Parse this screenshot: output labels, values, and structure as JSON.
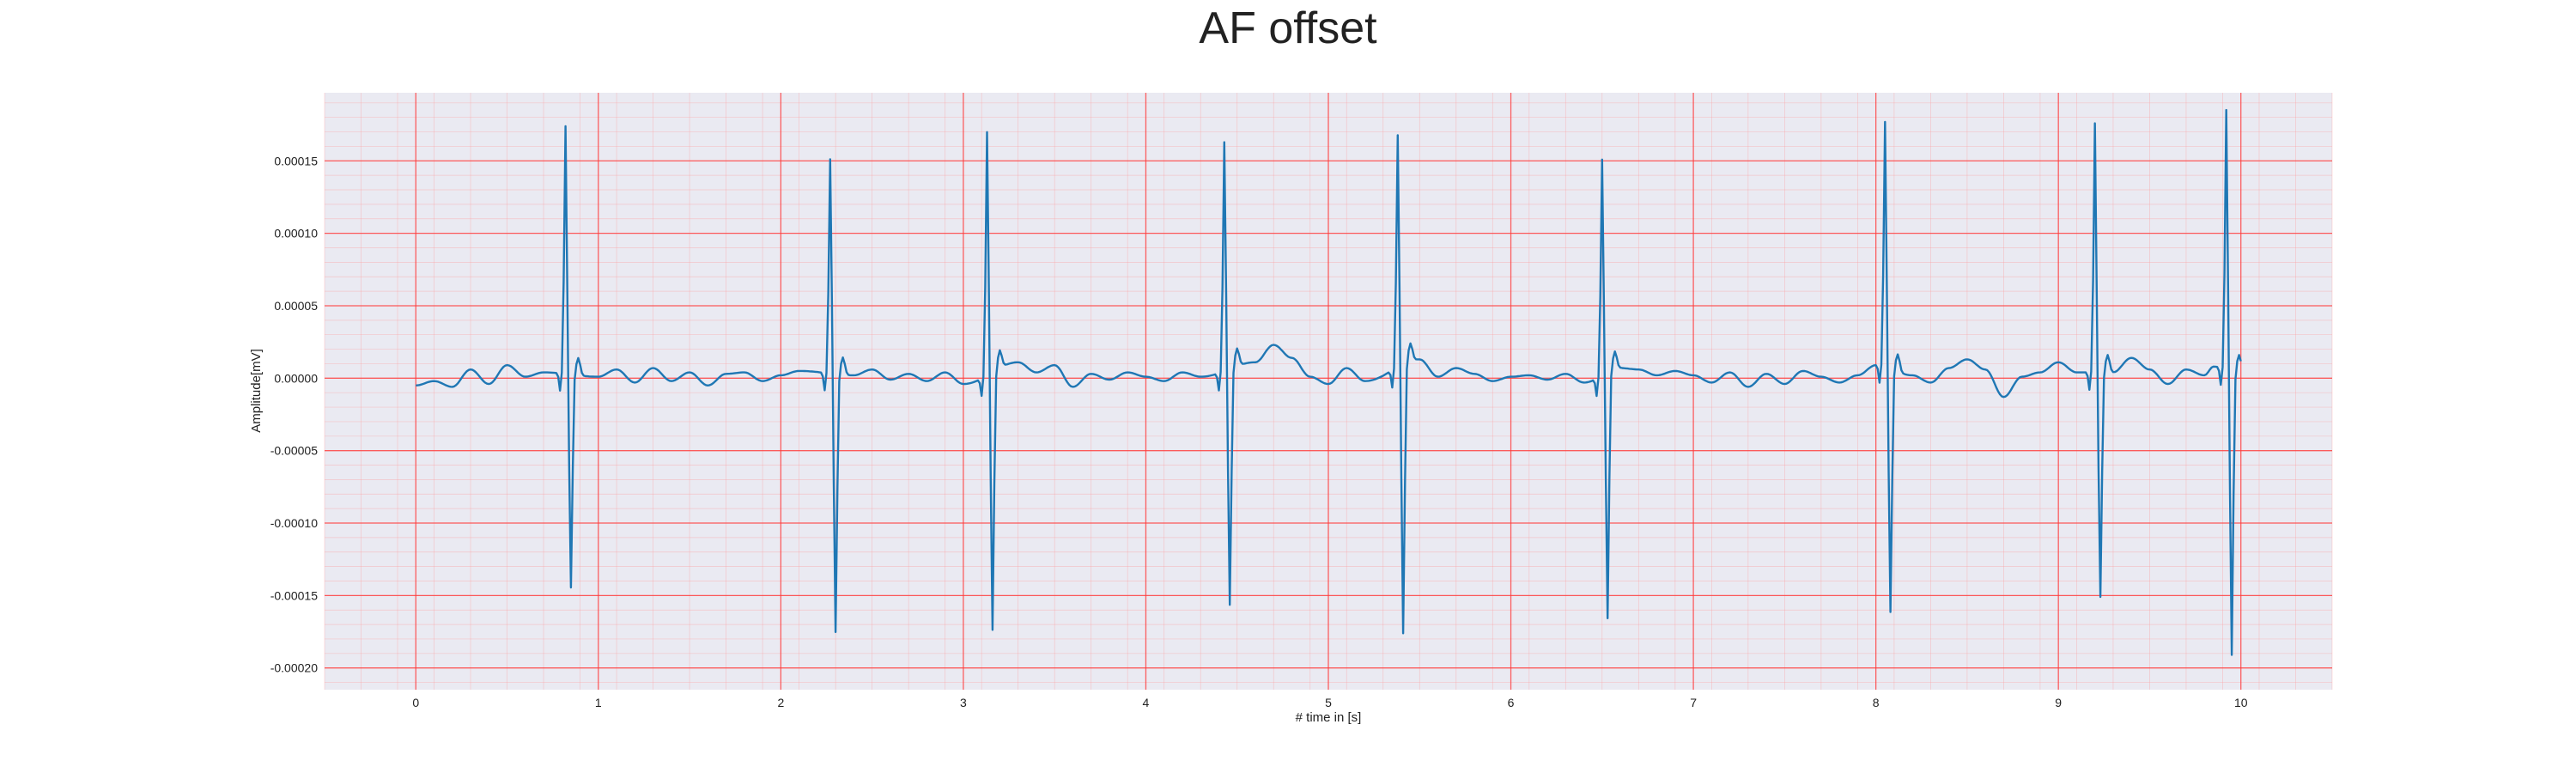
{
  "chart_data": {
    "type": "line",
    "title": "AF offset",
    "xlabel": "# time in [s]",
    "ylabel": "Amplitude[mV]",
    "xlim": [
      -0.5,
      10.5
    ],
    "ylim": [
      -0.000215,
      0.000197
    ],
    "x_ticks": [
      0,
      1,
      2,
      3,
      4,
      5,
      6,
      7,
      8,
      9,
      10
    ],
    "x_tick_labels": [
      "0",
      "1",
      "2",
      "3",
      "4",
      "5",
      "6",
      "7",
      "8",
      "9",
      "10"
    ],
    "y_ticks": [
      0.00015,
      0.0001,
      5e-05,
      0.0,
      -5e-05,
      -0.0001,
      -0.00015,
      -0.0002
    ],
    "y_tick_labels": [
      "0.00015",
      "0.00010",
      "0.00005",
      "0.00000",
      "-0.00005",
      "-0.00010",
      "-0.00015",
      "-0.00020"
    ],
    "grid": "on",
    "legend": "none",
    "sample_rate_hz": 100,
    "series": [
      {
        "color": "#1f77b4",
        "beats": [
          {
            "t": 0.82,
            "peak": 0.000171,
            "trough": -0.000147
          },
          {
            "t": 2.27,
            "peak": 0.000148,
            "trough": -0.000178
          },
          {
            "t": 3.13,
            "peak": 0.000168,
            "trough": -0.000178
          },
          {
            "t": 4.43,
            "peak": 0.000158,
            "trough": -0.000163
          },
          {
            "t": 5.38,
            "peak": 0.00016,
            "trough": -0.000186
          },
          {
            "t": 6.5,
            "peak": 0.000149,
            "trough": -0.00017
          },
          {
            "t": 8.05,
            "peak": 0.000169,
            "trough": -0.000168
          },
          {
            "t": 9.2,
            "peak": 0.000172,
            "trough": -0.000155
          },
          {
            "t": 9.92,
            "peak": 0.000179,
            "trough": -0.000196
          }
        ],
        "baseline": [
          [
            0.0,
            -5e-06
          ],
          [
            0.1,
            -2e-06
          ],
          [
            0.2,
            -6e-06
          ],
          [
            0.3,
            6e-06
          ],
          [
            0.4,
            -4e-06
          ],
          [
            0.5,
            9e-06
          ],
          [
            0.6,
            1e-06
          ],
          [
            0.7,
            4e-06
          ],
          [
            1.0,
            1e-06
          ],
          [
            1.1,
            6e-06
          ],
          [
            1.2,
            -3e-06
          ],
          [
            1.3,
            7e-06
          ],
          [
            1.4,
            -2e-06
          ],
          [
            1.5,
            4e-06
          ],
          [
            1.6,
            -5e-06
          ],
          [
            1.7,
            3e-06
          ],
          [
            1.8,
            4e-06
          ],
          [
            1.9,
            -2e-06
          ],
          [
            2.0,
            2e-06
          ],
          [
            2.1,
            5e-06
          ],
          [
            2.4,
            2e-06
          ],
          [
            2.5,
            6e-06
          ],
          [
            2.6,
            -1e-06
          ],
          [
            2.7,
            3e-06
          ],
          [
            2.8,
            -2e-06
          ],
          [
            2.9,
            4e-06
          ],
          [
            3.0,
            -4e-06
          ],
          [
            3.3,
            1.1e-05
          ],
          [
            3.4,
            4e-06
          ],
          [
            3.5,
            9e-06
          ],
          [
            3.6,
            -6e-06
          ],
          [
            3.7,
            3e-06
          ],
          [
            3.8,
            -1e-06
          ],
          [
            3.9,
            4e-06
          ],
          [
            4.0,
            1e-06
          ],
          [
            4.1,
            -2e-06
          ],
          [
            4.2,
            4e-06
          ],
          [
            4.3,
            1e-06
          ],
          [
            4.6,
            1.1e-05
          ],
          [
            4.7,
            2.3e-05
          ],
          [
            4.8,
            1.4e-05
          ],
          [
            4.9,
            1e-06
          ],
          [
            5.0,
            -4e-06
          ],
          [
            5.1,
            7e-06
          ],
          [
            5.2,
            -2e-06
          ],
          [
            5.5,
            1.3e-05
          ],
          [
            5.6,
            1e-06
          ],
          [
            5.7,
            7e-06
          ],
          [
            5.8,
            3e-06
          ],
          [
            5.9,
            -2e-06
          ],
          [
            6.0,
            1e-06
          ],
          [
            6.1,
            2e-06
          ],
          [
            6.2,
            -1e-06
          ],
          [
            6.3,
            3e-06
          ],
          [
            6.4,
            -3e-06
          ],
          [
            6.6,
            7e-06
          ],
          [
            6.7,
            6e-06
          ],
          [
            6.8,
            2e-06
          ],
          [
            6.9,
            5e-06
          ],
          [
            7.0,
            2e-06
          ],
          [
            7.1,
            -3e-06
          ],
          [
            7.2,
            4e-06
          ],
          [
            7.3,
            -6e-06
          ],
          [
            7.4,
            3e-06
          ],
          [
            7.5,
            -4e-06
          ],
          [
            7.6,
            5e-06
          ],
          [
            7.7,
            1e-06
          ],
          [
            7.8,
            -3e-06
          ],
          [
            7.9,
            2e-06
          ],
          [
            8.0,
            9e-06
          ],
          [
            8.2,
            2e-06
          ],
          [
            8.3,
            -3e-06
          ],
          [
            8.4,
            7e-06
          ],
          [
            8.5,
            1.3e-05
          ],
          [
            8.6,
            6e-06
          ],
          [
            8.7,
            -1.3e-05
          ],
          [
            8.8,
            1e-06
          ],
          [
            8.9,
            4e-06
          ],
          [
            9.0,
            1.1e-05
          ],
          [
            9.1,
            4e-06
          ],
          [
            9.3,
            4e-06
          ],
          [
            9.4,
            1.4e-05
          ],
          [
            9.5,
            6e-06
          ],
          [
            9.6,
            -4e-06
          ],
          [
            9.7,
            6e-06
          ],
          [
            9.8,
            2e-06
          ],
          [
            9.85,
            8e-06
          ],
          [
            10.0,
            4e-06
          ]
        ]
      }
    ]
  }
}
